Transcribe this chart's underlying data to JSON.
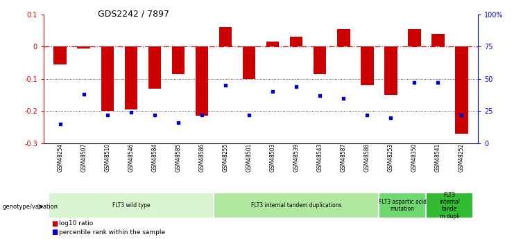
{
  "title": "GDS2242 / 7897",
  "samples": [
    "GSM48254",
    "GSM48507",
    "GSM48510",
    "GSM48546",
    "GSM48584",
    "GSM48585",
    "GSM48586",
    "GSM48255",
    "GSM48501",
    "GSM48503",
    "GSM48539",
    "GSM48543",
    "GSM48587",
    "GSM48588",
    "GSM48253",
    "GSM48350",
    "GSM48541",
    "GSM48252"
  ],
  "log10_ratio": [
    -0.055,
    -0.005,
    -0.2,
    -0.195,
    -0.13,
    -0.085,
    -0.215,
    0.06,
    -0.1,
    0.015,
    0.03,
    -0.085,
    0.055,
    -0.12,
    -0.15,
    0.055,
    0.04,
    -0.27
  ],
  "percentile_rank": [
    15,
    38,
    22,
    24,
    22,
    16,
    22,
    45,
    22,
    40,
    44,
    37,
    35,
    22,
    20,
    47,
    47,
    22
  ],
  "bar_color": "#cc0000",
  "dot_color": "#0000cc",
  "groups": [
    {
      "label": "FLT3 wild type",
      "start": 0,
      "end": 7,
      "color": "#d9f5d0"
    },
    {
      "label": "FLT3 internal tandem duplications",
      "start": 7,
      "end": 14,
      "color": "#b0e8a0"
    },
    {
      "label": "FLT3 aspartic acid\nmutation",
      "start": 14,
      "end": 16,
      "color": "#70d870"
    },
    {
      "label": "FLT3\ninternal\ntande\nm dupli",
      "start": 16,
      "end": 18,
      "color": "#33bb33"
    }
  ],
  "ylim_left": [
    -0.3,
    0.1
  ],
  "ylim_right": [
    0,
    100
  ],
  "yticks_left": [
    -0.3,
    -0.2,
    -0.1,
    0.0,
    0.1
  ],
  "ytick_left_labels": [
    "-0.3",
    "-0.2",
    "-0.1",
    "0",
    "0.1"
  ],
  "yticks_right": [
    0,
    25,
    50,
    75,
    100
  ],
  "ytick_right_labels": [
    "0",
    "25",
    "50",
    "75",
    "100%"
  ],
  "hline_y": 0.0,
  "dotted_lines": [
    -0.1,
    -0.2
  ],
  "legend_items": [
    {
      "label": "log10 ratio",
      "color": "#cc0000"
    },
    {
      "label": "percentile rank within the sample",
      "color": "#0000cc"
    }
  ]
}
